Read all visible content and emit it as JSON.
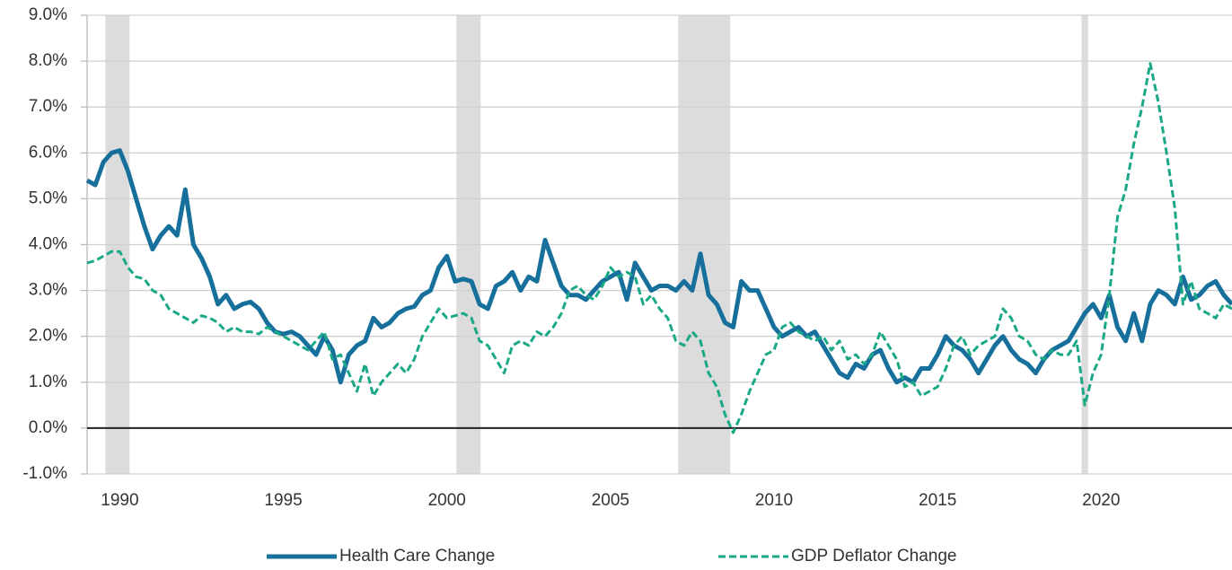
{
  "chart_data": {
    "type": "line",
    "x": [
      1989,
      1989.25,
      1989.5,
      1989.75,
      1990,
      1990.25,
      1990.5,
      1990.75,
      1991,
      1991.25,
      1991.5,
      1991.75,
      1992,
      1992.25,
      1992.5,
      1992.75,
      1993,
      1993.25,
      1993.5,
      1993.75,
      1994,
      1994.25,
      1994.5,
      1994.75,
      1995,
      1995.25,
      1995.5,
      1995.75,
      1996,
      1996.25,
      1996.5,
      1996.75,
      1997,
      1997.25,
      1997.5,
      1997.75,
      1998,
      1998.25,
      1998.5,
      1998.75,
      1999,
      1999.25,
      1999.5,
      1999.75,
      2000,
      2000.25,
      2000.5,
      2000.75,
      2001,
      2001.25,
      2001.5,
      2001.75,
      2002,
      2002.25,
      2002.5,
      2002.75,
      2003,
      2003.25,
      2003.5,
      2003.75,
      2004,
      2004.25,
      2004.5,
      2004.75,
      2005,
      2005.25,
      2005.5,
      2005.75,
      2006,
      2006.25,
      2006.5,
      2006.75,
      2007,
      2007.25,
      2007.5,
      2007.75,
      2008,
      2008.25,
      2008.5,
      2008.75,
      2009,
      2009.25,
      2009.5,
      2009.75,
      2010,
      2010.25,
      2010.5,
      2010.75,
      2011,
      2011.25,
      2011.5,
      2011.75,
      2012,
      2012.25,
      2012.5,
      2012.75,
      2013,
      2013.25,
      2013.5,
      2013.75,
      2014,
      2014.25,
      2014.5,
      2014.75,
      2015,
      2015.25,
      2015.5,
      2015.75,
      2016,
      2016.25,
      2016.5,
      2016.75,
      2017,
      2017.25,
      2017.5,
      2017.75,
      2018,
      2018.25,
      2018.5,
      2018.75,
      2019,
      2019.25,
      2019.5,
      2019.75,
      2020,
      2020.25,
      2020.5,
      2020.75,
      2021,
      2021.25,
      2021.5,
      2021.75,
      2022,
      2022.25,
      2022.5,
      2022.75,
      2023,
      2023.25,
      2023.5,
      2023.75,
      2024
    ],
    "series": [
      {
        "name": "Health Care Change",
        "color": "#17709c",
        "dash": false,
        "values": [
          5.4,
          5.3,
          5.8,
          6.0,
          6.05,
          5.6,
          5.0,
          4.4,
          3.9,
          4.2,
          4.4,
          4.2,
          5.2,
          4.0,
          3.7,
          3.3,
          2.7,
          2.9,
          2.6,
          2.7,
          2.75,
          2.6,
          2.3,
          2.1,
          2.05,
          2.1,
          2.0,
          1.8,
          1.6,
          2.0,
          1.7,
          1.0,
          1.6,
          1.8,
          1.9,
          2.4,
          2.2,
          2.3,
          2.5,
          2.6,
          2.65,
          2.9,
          3.0,
          3.5,
          3.75,
          3.2,
          3.25,
          3.2,
          2.7,
          2.6,
          3.1,
          3.2,
          3.4,
          3.0,
          3.3,
          3.2,
          4.1,
          3.6,
          3.1,
          2.9,
          2.9,
          2.8,
          3.0,
          3.2,
          3.3,
          3.4,
          2.8,
          3.6,
          3.3,
          3.0,
          3.1,
          3.1,
          3.0,
          3.2,
          3.0,
          3.8,
          2.9,
          2.7,
          2.3,
          2.2,
          3.2,
          3.0,
          3.0,
          2.6,
          2.2,
          2.0,
          2.1,
          2.2,
          2.0,
          2.1,
          1.8,
          1.5,
          1.2,
          1.1,
          1.4,
          1.3,
          1.6,
          1.7,
          1.3,
          1.0,
          1.1,
          1.0,
          1.3,
          1.3,
          1.6,
          2.0,
          1.8,
          1.7,
          1.5,
          1.2,
          1.5,
          1.8,
          2.0,
          1.7,
          1.5,
          1.4,
          1.2,
          1.5,
          1.7,
          1.8,
          1.9,
          2.2,
          2.5,
          2.7,
          2.4,
          2.9,
          2.2,
          1.9,
          2.5,
          1.9,
          2.7,
          3.0,
          2.9,
          2.7,
          3.3,
          2.8,
          2.9,
          3.1,
          3.2,
          2.9,
          2.7
        ]
      },
      {
        "name": "GDP Deflator Change",
        "color": "#1aa886",
        "dash": true,
        "values": [
          3.6,
          3.65,
          3.75,
          3.85,
          3.85,
          3.5,
          3.3,
          3.25,
          3.0,
          2.9,
          2.6,
          2.5,
          2.4,
          2.3,
          2.45,
          2.4,
          2.3,
          2.1,
          2.2,
          2.1,
          2.1,
          2.05,
          2.2,
          2.1,
          2.0,
          1.9,
          1.8,
          1.7,
          1.9,
          2.1,
          1.5,
          1.6,
          1.2,
          0.8,
          1.4,
          0.7,
          1.0,
          1.2,
          1.4,
          1.2,
          1.5,
          2.0,
          2.3,
          2.6,
          2.4,
          2.45,
          2.5,
          2.4,
          1.9,
          1.8,
          1.5,
          1.2,
          1.8,
          1.9,
          1.8,
          2.1,
          2.0,
          2.2,
          2.5,
          3.0,
          3.1,
          2.9,
          2.8,
          3.1,
          3.5,
          3.3,
          3.4,
          3.3,
          2.7,
          2.9,
          2.6,
          2.4,
          1.9,
          1.8,
          2.1,
          1.9,
          1.2,
          0.9,
          0.3,
          -0.1,
          0.3,
          0.8,
          1.2,
          1.6,
          1.7,
          2.2,
          2.3,
          2.1,
          2.0,
          1.9,
          2.0,
          1.7,
          1.9,
          1.5,
          1.6,
          1.4,
          1.6,
          2.1,
          1.8,
          1.5,
          0.9,
          1.0,
          0.7,
          0.8,
          0.9,
          1.3,
          1.8,
          2.0,
          1.6,
          1.8,
          1.9,
          2.0,
          2.6,
          2.4,
          2.0,
          1.9,
          1.6,
          1.5,
          1.7,
          1.6,
          1.6,
          1.9,
          0.5,
          1.2,
          1.6,
          2.9,
          4.6,
          5.2,
          6.2,
          7.0,
          7.95,
          7.1,
          6.0,
          4.8,
          2.7,
          3.2,
          2.6,
          2.5,
          2.4,
          2.7,
          2.6
        ]
      }
    ],
    "recessions": [
      [
        1989.56,
        1990.3
      ],
      [
        2000.29,
        2001.03
      ],
      [
        2007.07,
        2008.66
      ],
      [
        2019.4,
        2019.6
      ]
    ],
    "xlim": [
      1989,
      2024
    ],
    "xticks": [
      1990,
      1995,
      2000,
      2005,
      2010,
      2015,
      2020
    ],
    "ylim": [
      -1,
      9
    ],
    "yticks": [
      {
        "value": -1,
        "label": "-1.0%"
      },
      {
        "value": 0,
        "label": "0.0%"
      },
      {
        "value": 1,
        "label": "1.0%"
      },
      {
        "value": 2,
        "label": "2.0%"
      },
      {
        "value": 3,
        "label": "3.0%"
      },
      {
        "value": 4,
        "label": "4.0%"
      },
      {
        "value": 5,
        "label": "5.0%"
      },
      {
        "value": 6,
        "label": "6.0%"
      },
      {
        "value": 7,
        "label": "7.0%"
      },
      {
        "value": 8,
        "label": "8.0%"
      },
      {
        "value": 9,
        "label": "9.0%"
      }
    ],
    "grid": true,
    "legend": "bottom"
  }
}
